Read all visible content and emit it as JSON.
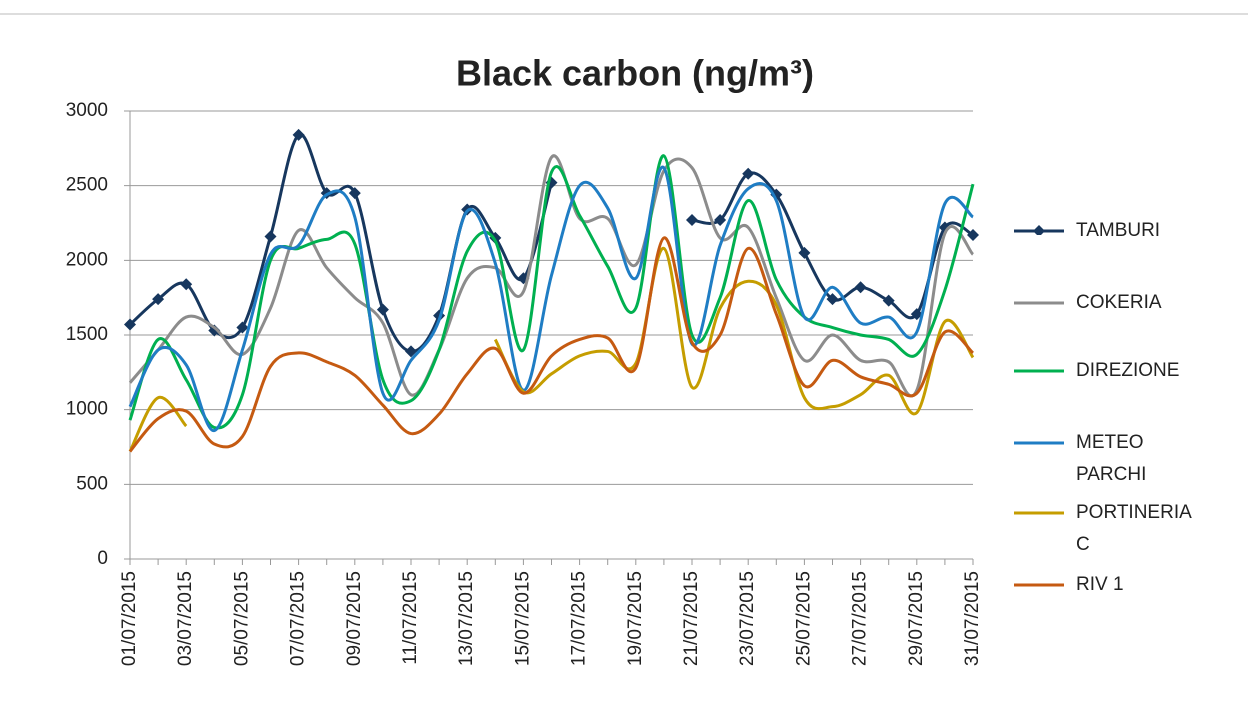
{
  "chart_data": {
    "type": "line",
    "title": "Black carbon  (ng/m³)",
    "categories": [
      "01/07/2015",
      null,
      "03/07/2015",
      null,
      "05/07/2015",
      null,
      "07/07/2015",
      null,
      "09/07/2015",
      null,
      "11/07/2015",
      null,
      "13/07/2015",
      null,
      "15/07/2015",
      null,
      "17/07/2015",
      null,
      "19/07/2015",
      null,
      "21/07/2015",
      null,
      "23/07/2015",
      null,
      "25/07/2015",
      null,
      "27/07/2015",
      null,
      "29/07/2015",
      null,
      "31/07/2015"
    ],
    "ylim": [
      0,
      3000
    ],
    "yticks": [
      0,
      500,
      1000,
      1500,
      2000,
      2500,
      3000
    ],
    "grid": true,
    "legend": "right",
    "series": [
      {
        "name": "TAMBURI",
        "color": "#17375e",
        "marker": "diamond",
        "values": [
          1570,
          1740,
          1840,
          1530,
          1550,
          2160,
          2840,
          2450,
          2450,
          1670,
          1390,
          1630,
          2340,
          2150,
          1880,
          2520,
          null,
          null,
          null,
          null,
          2270,
          2270,
          2580,
          2440,
          2050,
          1740,
          1820,
          1730,
          1640,
          2220,
          2170
        ]
      },
      {
        "name": "COKERIA",
        "color": "#8c8c8c",
        "values": [
          1180,
          1400,
          1620,
          1550,
          1370,
          1680,
          2200,
          1950,
          1750,
          1580,
          1100,
          1400,
          1880,
          1950,
          1790,
          2690,
          2280,
          2280,
          1970,
          2600,
          2620,
          2150,
          2220,
          1750,
          1330,
          1500,
          1330,
          1320,
          1130,
          2180,
          2040
        ]
      },
      {
        "name": "DIREZIONE",
        "color": "#00b050",
        "values": [
          930,
          1470,
          1200,
          880,
          1100,
          2000,
          2080,
          2140,
          2110,
          1200,
          1060,
          1400,
          2060,
          2130,
          1400,
          2590,
          2300,
          1960,
          1680,
          2700,
          1500,
          1750,
          2400,
          1870,
          1620,
          1550,
          1500,
          1470,
          1370,
          1800,
          2510
        ]
      },
      {
        "name": "METEO PARCHI",
        "color": "#1f7dc4",
        "values": [
          1020,
          1400,
          1300,
          860,
          1400,
          2040,
          2100,
          2440,
          2290,
          1110,
          1330,
          1600,
          2330,
          1980,
          1130,
          1900,
          2500,
          2350,
          1880,
          2620,
          1440,
          2100,
          2480,
          2400,
          1620,
          1820,
          1580,
          1620,
          1520,
          2380,
          2290
        ]
      },
      {
        "name": "PORTINERIA C",
        "color": "#c59d00",
        "values": [
          720,
          1080,
          890,
          null,
          null,
          null,
          null,
          null,
          null,
          null,
          null,
          null,
          null,
          1470,
          1120,
          1240,
          1360,
          1390,
          1310,
          2080,
          1150,
          1680,
          1860,
          1700,
          1080,
          1020,
          1100,
          1230,
          980,
          1590,
          1350
        ]
      },
      {
        "name": "RIV 1",
        "color": "#c55a11",
        "values": [
          720,
          940,
          990,
          770,
          820,
          1290,
          1380,
          1320,
          1230,
          1030,
          840,
          970,
          1240,
          1410,
          1110,
          1360,
          1470,
          1480,
          1280,
          2150,
          1450,
          1500,
          2080,
          1640,
          1160,
          1330,
          1220,
          1170,
          1110,
          1520,
          1380
        ]
      }
    ]
  }
}
